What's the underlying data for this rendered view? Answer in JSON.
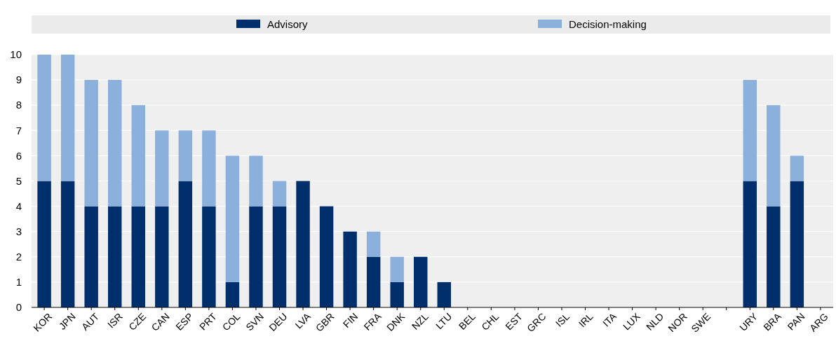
{
  "chart_data": {
    "type": "bar",
    "stacked": true,
    "categories": [
      "KOR",
      "JPN",
      "AUT",
      "ISR",
      "CZE",
      "CAN",
      "ESP",
      "PRT",
      "COL",
      "SVN",
      "DEU",
      "LVA",
      "GBR",
      "FIN",
      "FRA",
      "DNK",
      "NZL",
      "LTU",
      "BEL",
      "CHL",
      "EST",
      "GRC",
      "ISL",
      "IRL",
      "ITA",
      "LUX",
      "NLD",
      "NOR",
      "SWE",
      null,
      "URY",
      "BRA",
      "PAN",
      "ARG"
    ],
    "series": [
      {
        "name": "Advisory",
        "color": "#002f6c",
        "values": [
          5,
          5,
          4,
          4,
          4,
          4,
          5,
          4,
          1,
          4,
          4,
          5,
          4,
          3,
          2,
          1,
          2,
          1,
          0,
          0,
          0,
          0,
          0,
          0,
          0,
          0,
          0,
          0,
          0,
          null,
          5,
          4,
          5,
          0
        ]
      },
      {
        "name": "Decision-making",
        "color": "#8cb0dc",
        "values": [
          5,
          5,
          5,
          5,
          4,
          3,
          2,
          3,
          5,
          2,
          1,
          0,
          0,
          0,
          1,
          1,
          0,
          0,
          0,
          0,
          0,
          0,
          0,
          0,
          0,
          0,
          0,
          0,
          0,
          null,
          4,
          4,
          1,
          0
        ]
      }
    ],
    "ylim": [
      0,
      10
    ],
    "yticks": [
      0,
      1,
      2,
      3,
      4,
      5,
      6,
      7,
      8,
      9,
      10
    ],
    "grid": "y",
    "legend": "top"
  }
}
